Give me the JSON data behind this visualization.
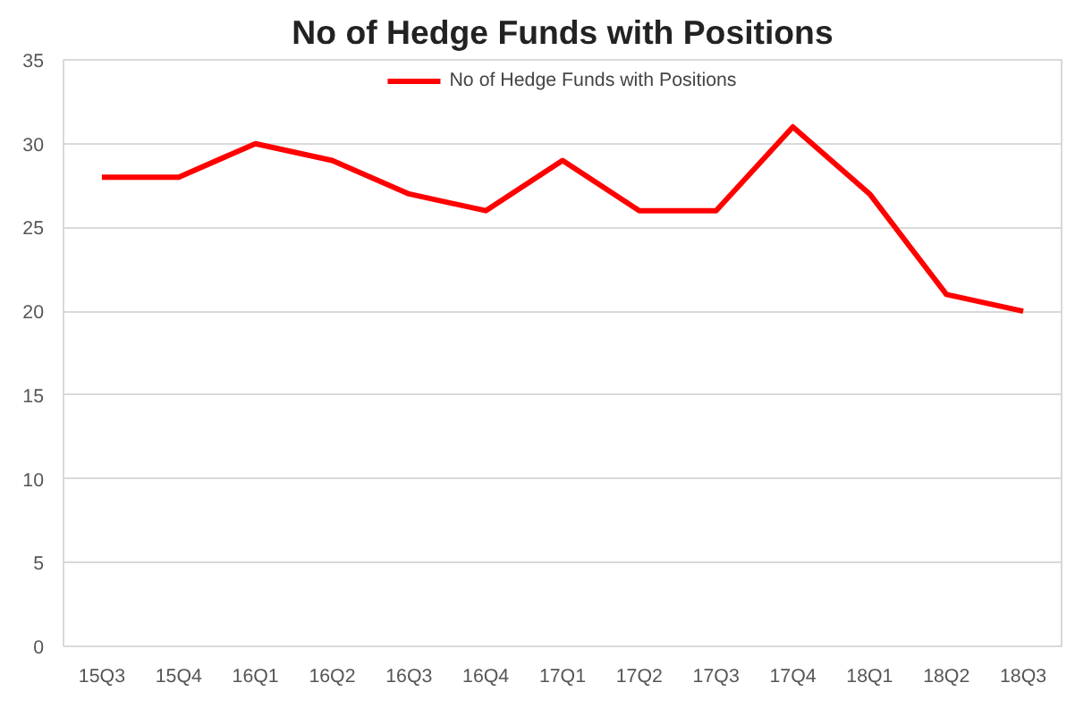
{
  "chart_data": {
    "type": "line",
    "title": "No of Hedge Funds with Positions",
    "categories": [
      "15Q3",
      "15Q4",
      "16Q1",
      "16Q2",
      "16Q3",
      "16Q4",
      "17Q1",
      "17Q2",
      "17Q3",
      "17Q4",
      "18Q1",
      "18Q2",
      "18Q3"
    ],
    "series": [
      {
        "name": "No of Hedge Funds with Positions",
        "color": "#ff0000",
        "values": [
          28,
          28,
          30,
          29,
          27,
          26,
          29,
          26,
          26,
          31,
          27,
          21,
          20
        ]
      }
    ],
    "ylim": [
      0,
      35
    ],
    "yticks": [
      0,
      5,
      10,
      15,
      20,
      25,
      30,
      35
    ],
    "grid": "y",
    "legend": "top",
    "marker": "none",
    "line_style": "solid"
  }
}
